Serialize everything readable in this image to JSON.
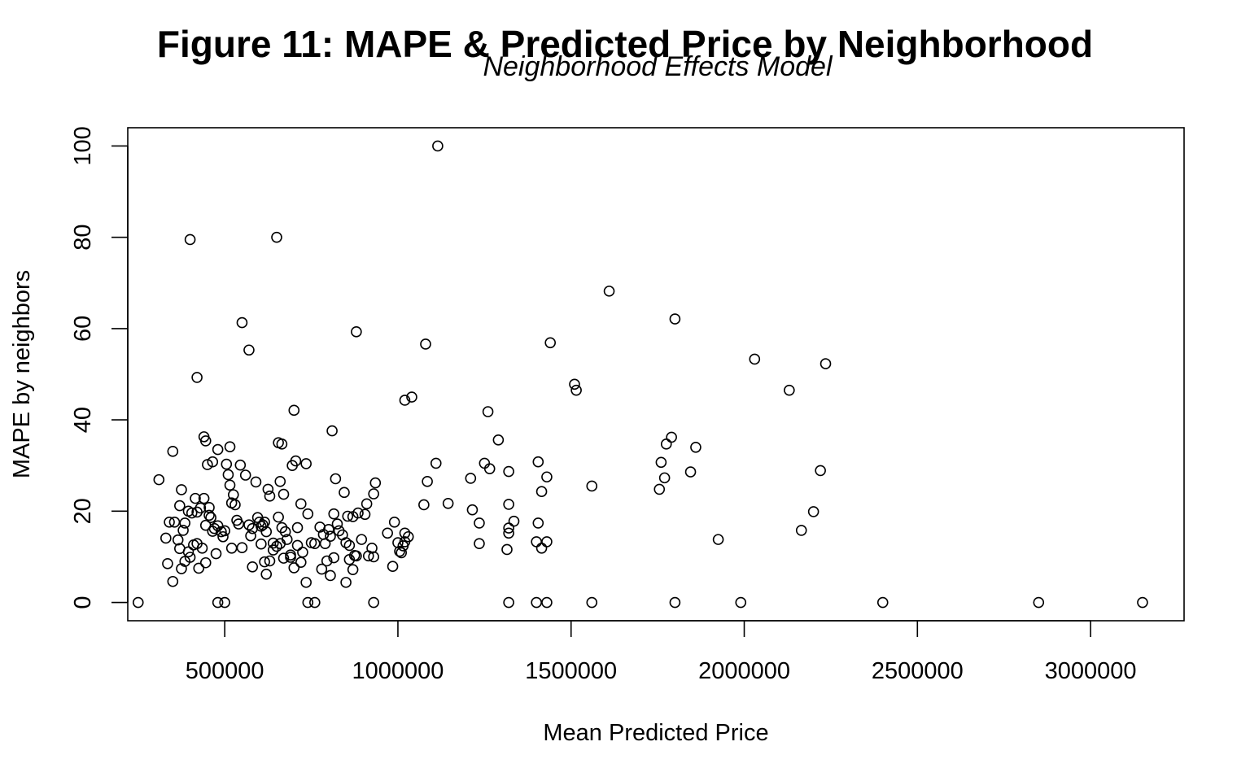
{
  "chart_data": {
    "type": "scatter",
    "title": "Figure 11: MAPE & Predicted Price by Neighborhood",
    "subtitle": "Neighborhood Effects Model",
    "xlabel": "Mean Predicted Price",
    "ylabel": "MAPE by neighbors",
    "xlim": [
      220000,
      3270000
    ],
    "ylim": [
      -4,
      104
    ],
    "xticks": [
      500000,
      1000000,
      1500000,
      2000000,
      2500000,
      3000000
    ],
    "xtick_labels": [
      "500000",
      "1000000",
      "1500000",
      "2000000",
      "2500000",
      "3000000"
    ],
    "yticks": [
      0,
      20,
      40,
      60,
      80,
      100
    ],
    "ytick_labels": [
      "0",
      "20",
      "40",
      "60",
      "80",
      "100"
    ],
    "grid": false,
    "points": [
      [
        250000,
        0
      ],
      [
        480000,
        0
      ],
      [
        500000,
        0
      ],
      [
        740000,
        0
      ],
      [
        760000,
        0
      ],
      [
        930000,
        0
      ],
      [
        1320000,
        0
      ],
      [
        1400000,
        0
      ],
      [
        1430000,
        0
      ],
      [
        1560000,
        0
      ],
      [
        1800000,
        0
      ],
      [
        1990000,
        0
      ],
      [
        2400000,
        0
      ],
      [
        2850000,
        0
      ],
      [
        3150000,
        0
      ],
      [
        400000,
        79.5
      ],
      [
        650000,
        80
      ],
      [
        1115000,
        100
      ],
      [
        550000,
        61.3
      ],
      [
        570000,
        55.3
      ],
      [
        420000,
        49.3
      ],
      [
        880000,
        59.3
      ],
      [
        1080000,
        56.6
      ],
      [
        1610000,
        68.2
      ],
      [
        1800000,
        62.1
      ],
      [
        1440000,
        56.9
      ],
      [
        2030000,
        53.3
      ],
      [
        2235000,
        52.3
      ],
      [
        2130000,
        46.5
      ],
      [
        1510000,
        47.8
      ],
      [
        1515000,
        46.5
      ],
      [
        1020000,
        44.3
      ],
      [
        1040000,
        45.0
      ],
      [
        700000,
        42.1
      ],
      [
        810000,
        37.6
      ],
      [
        1260000,
        41.8
      ],
      [
        1290000,
        35.6
      ],
      [
        1790000,
        36.2
      ],
      [
        1775000,
        34.7
      ],
      [
        1860000,
        34.0
      ],
      [
        440000,
        36.3
      ],
      [
        445000,
        35.4
      ],
      [
        350000,
        33.1
      ],
      [
        515000,
        34.1
      ],
      [
        655000,
        35.0
      ],
      [
        665000,
        34.7
      ],
      [
        480000,
        33.5
      ],
      [
        310000,
        26.9
      ],
      [
        1110000,
        30.5
      ],
      [
        1250000,
        30.5
      ],
      [
        1265000,
        29.3
      ],
      [
        1405000,
        30.8
      ],
      [
        1760000,
        30.7
      ],
      [
        1430000,
        27.5
      ],
      [
        1770000,
        27.3
      ],
      [
        1845000,
        28.6
      ],
      [
        2220000,
        28.9
      ],
      [
        1210000,
        27.2
      ],
      [
        1320000,
        28.7
      ],
      [
        1085000,
        26.5
      ],
      [
        1145000,
        21.7
      ],
      [
        1075000,
        21.4
      ],
      [
        1215000,
        20.3
      ],
      [
        1755000,
        24.8
      ],
      [
        1415000,
        24.3
      ],
      [
        1560000,
        25.5
      ],
      [
        2200000,
        19.9
      ],
      [
        2165000,
        15.8
      ],
      [
        1925000,
        13.8
      ],
      [
        1320000,
        21.5
      ],
      [
        1335000,
        17.8
      ],
      [
        1235000,
        17.4
      ],
      [
        1320000,
        16.3
      ],
      [
        1320000,
        15.2
      ],
      [
        1405000,
        17.4
      ],
      [
        1400000,
        13.3
      ],
      [
        1430000,
        13.3
      ],
      [
        1415000,
        11.9
      ],
      [
        1315000,
        11.6
      ],
      [
        1235000,
        12.9
      ],
      [
        970000,
        15.2
      ],
      [
        985000,
        7.9
      ],
      [
        990000,
        17.6
      ],
      [
        1000000,
        13.1
      ],
      [
        1005000,
        11.2
      ],
      [
        1015000,
        12.4
      ],
      [
        1020000,
        15.2
      ],
      [
        1030000,
        14.4
      ],
      [
        1020000,
        13.3
      ],
      [
        1010000,
        10.9
      ],
      [
        340000,
        17.6
      ],
      [
        355000,
        17.6
      ],
      [
        370000,
        21.2
      ],
      [
        375000,
        24.7
      ],
      [
        380000,
        15.8
      ],
      [
        385000,
        17.4
      ],
      [
        395000,
        20.0
      ],
      [
        405000,
        19.6
      ],
      [
        415000,
        22.8
      ],
      [
        420000,
        19.8
      ],
      [
        430000,
        20.7
      ],
      [
        440000,
        22.8
      ],
      [
        445000,
        16.9
      ],
      [
        450000,
        30.2
      ],
      [
        455000,
        20.8
      ],
      [
        460000,
        18.6
      ],
      [
        465000,
        30.8
      ],
      [
        470000,
        16.2
      ],
      [
        480000,
        16.8
      ],
      [
        490000,
        15.5
      ],
      [
        495000,
        14.4
      ],
      [
        500000,
        15.7
      ],
      [
        505000,
        30.3
      ],
      [
        510000,
        28.0
      ],
      [
        515000,
        25.7
      ],
      [
        520000,
        21.8
      ],
      [
        525000,
        23.6
      ],
      [
        530000,
        21.4
      ],
      [
        535000,
        18.0
      ],
      [
        540000,
        17.2
      ],
      [
        545000,
        30.1
      ],
      [
        560000,
        27.9
      ],
      [
        570000,
        17.0
      ],
      [
        575000,
        14.6
      ],
      [
        580000,
        16.2
      ],
      [
        590000,
        26.4
      ],
      [
        595000,
        18.6
      ],
      [
        600000,
        17.6
      ],
      [
        605000,
        16.7
      ],
      [
        610000,
        17.0
      ],
      [
        615000,
        17.6
      ],
      [
        620000,
        15.5
      ],
      [
        625000,
        24.8
      ],
      [
        630000,
        23.3
      ],
      [
        640000,
        13.0
      ],
      [
        650000,
        12.3
      ],
      [
        655000,
        18.7
      ],
      [
        660000,
        26.5
      ],
      [
        665000,
        16.4
      ],
      [
        670000,
        23.7
      ],
      [
        675000,
        15.5
      ],
      [
        680000,
        13.8
      ],
      [
        690000,
        10.4
      ],
      [
        695000,
        30.0
      ],
      [
        705000,
        31.0
      ],
      [
        710000,
        16.4
      ],
      [
        720000,
        21.6
      ],
      [
        725000,
        11.0
      ],
      [
        735000,
        30.4
      ],
      [
        740000,
        19.4
      ],
      [
        750000,
        13.1
      ],
      [
        775000,
        16.5
      ],
      [
        785000,
        14.9
      ],
      [
        790000,
        12.9
      ],
      [
        800000,
        16.0
      ],
      [
        805000,
        14.5
      ],
      [
        815000,
        19.4
      ],
      [
        820000,
        27.1
      ],
      [
        825000,
        17.2
      ],
      [
        830000,
        15.7
      ],
      [
        840000,
        14.8
      ],
      [
        845000,
        24.1
      ],
      [
        850000,
        13.1
      ],
      [
        855000,
        18.9
      ],
      [
        860000,
        12.5
      ],
      [
        870000,
        18.8
      ],
      [
        875000,
        10.3
      ],
      [
        885000,
        19.6
      ],
      [
        895000,
        13.8
      ],
      [
        905000,
        19.3
      ],
      [
        910000,
        21.6
      ],
      [
        915000,
        10.2
      ],
      [
        925000,
        11.9
      ],
      [
        930000,
        23.8
      ],
      [
        935000,
        26.2
      ],
      [
        330000,
        14.1
      ],
      [
        335000,
        8.5
      ],
      [
        350000,
        4.6
      ],
      [
        365000,
        13.7
      ],
      [
        370000,
        11.8
      ],
      [
        375000,
        7.4
      ],
      [
        385000,
        9.0
      ],
      [
        395000,
        11.1
      ],
      [
        400000,
        9.9
      ],
      [
        410000,
        12.6
      ],
      [
        420000,
        12.9
      ],
      [
        425000,
        7.5
      ],
      [
        435000,
        11.9
      ],
      [
        445000,
        8.7
      ],
      [
        455000,
        19.1
      ],
      [
        465000,
        15.6
      ],
      [
        475000,
        10.7
      ],
      [
        520000,
        11.9
      ],
      [
        550000,
        12.0
      ],
      [
        580000,
        7.8
      ],
      [
        605000,
        12.8
      ],
      [
        615000,
        8.9
      ],
      [
        620000,
        6.2
      ],
      [
        630000,
        9.1
      ],
      [
        640000,
        11.5
      ],
      [
        660000,
        12.9
      ],
      [
        670000,
        9.7
      ],
      [
        690000,
        9.9
      ],
      [
        700000,
        7.6
      ],
      [
        710000,
        12.5
      ],
      [
        720000,
        8.8
      ],
      [
        735000,
        4.4
      ],
      [
        760000,
        12.9
      ],
      [
        780000,
        7.3
      ],
      [
        795000,
        9.1
      ],
      [
        805000,
        5.9
      ],
      [
        815000,
        9.8
      ],
      [
        850000,
        4.4
      ],
      [
        860000,
        9.4
      ],
      [
        870000,
        7.2
      ],
      [
        880000,
        10.2
      ],
      [
        930000,
        10.0
      ]
    ]
  }
}
